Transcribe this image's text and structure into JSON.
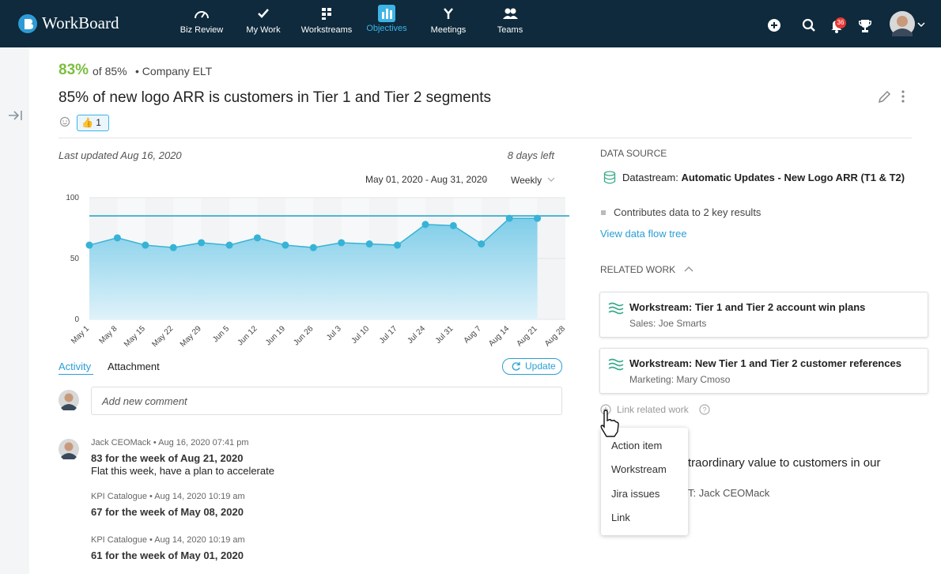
{
  "nav": {
    "logo": "WorkBoard",
    "items": [
      "Biz Review",
      "My Work",
      "Workstreams",
      "Objectives",
      "Meetings",
      "Teams"
    ],
    "notification_count": "36"
  },
  "header": {
    "progress": "83%",
    "of_target": "of 85%",
    "team": "• Company ELT",
    "title": "85% of new logo ARR is customers in Tier 1 and Tier 2 segments",
    "reaction_count": "1"
  },
  "chart_meta": {
    "last_updated": "Last updated Aug 16, 2020",
    "days_left": "8 days left",
    "date_range": "May 01, 2020 - Aug 31, 2020",
    "period": "Weekly"
  },
  "chart_data": {
    "type": "line",
    "categories": [
      "May 1",
      "May 8",
      "May 15",
      "May 22",
      "May 29",
      "Jun 5",
      "Jun 12",
      "Jun 19",
      "Jun 26",
      "Jul 3",
      "Jul 10",
      "Jul 17",
      "Jul 24",
      "Jul 31",
      "Aug 7",
      "Aug 14",
      "Aug 21",
      "Aug 28"
    ],
    "values": [
      61,
      67,
      61,
      59,
      63,
      61,
      67,
      61,
      59,
      63,
      62,
      61,
      78,
      77,
      62,
      83,
      83,
      null
    ],
    "target": 85,
    "color": "#36b3d6",
    "area": true,
    "ylim": [
      0,
      100
    ],
    "yticks": [
      0,
      50,
      100
    ],
    "grid": true
  },
  "activity": {
    "tabs": [
      "Activity",
      "Attachment"
    ],
    "update": "Update",
    "placeholder": "Add new comment",
    "entries": [
      {
        "meta": "Jack CEOMack  • Aug 16, 2020 07:41 pm",
        "headline": "83 for the week of Aug 21, 2020",
        "body": "Flat this week, have a plan to accelerate"
      },
      {
        "meta": "KPI Catalogue  • Aug 14, 2020 10:19 am",
        "headline": "67 for the week of May 08, 2020"
      },
      {
        "meta": "KPI Catalogue  • Aug 14, 2020 10:19 am",
        "headline": "61 for the week of May 01, 2020"
      }
    ]
  },
  "data_source": {
    "heading": "DATA SOURCE",
    "label": "Datastream:",
    "name": "Automatic Updates - New Logo ARR (T1 & T2)",
    "contributes": "Contributes data to 2 key results",
    "link": "View data flow tree"
  },
  "related_work": {
    "heading": "RELATED WORK",
    "items": [
      {
        "title": "Workstream: Tier 1 and Tier 2 account win plans",
        "subtitle": "Sales: Joe Smarts"
      },
      {
        "title": "Workstream: New Tier 1 and Tier 2 customer references",
        "subtitle": "Marketing: Mary Cmoso"
      }
    ],
    "link_action": "Link related work"
  },
  "menu": [
    "Action item",
    "Workstream",
    "Jira issues",
    "Link"
  ],
  "obscured": [
    "traordinary value to customers in our",
    "T: Jack CEOMack"
  ]
}
